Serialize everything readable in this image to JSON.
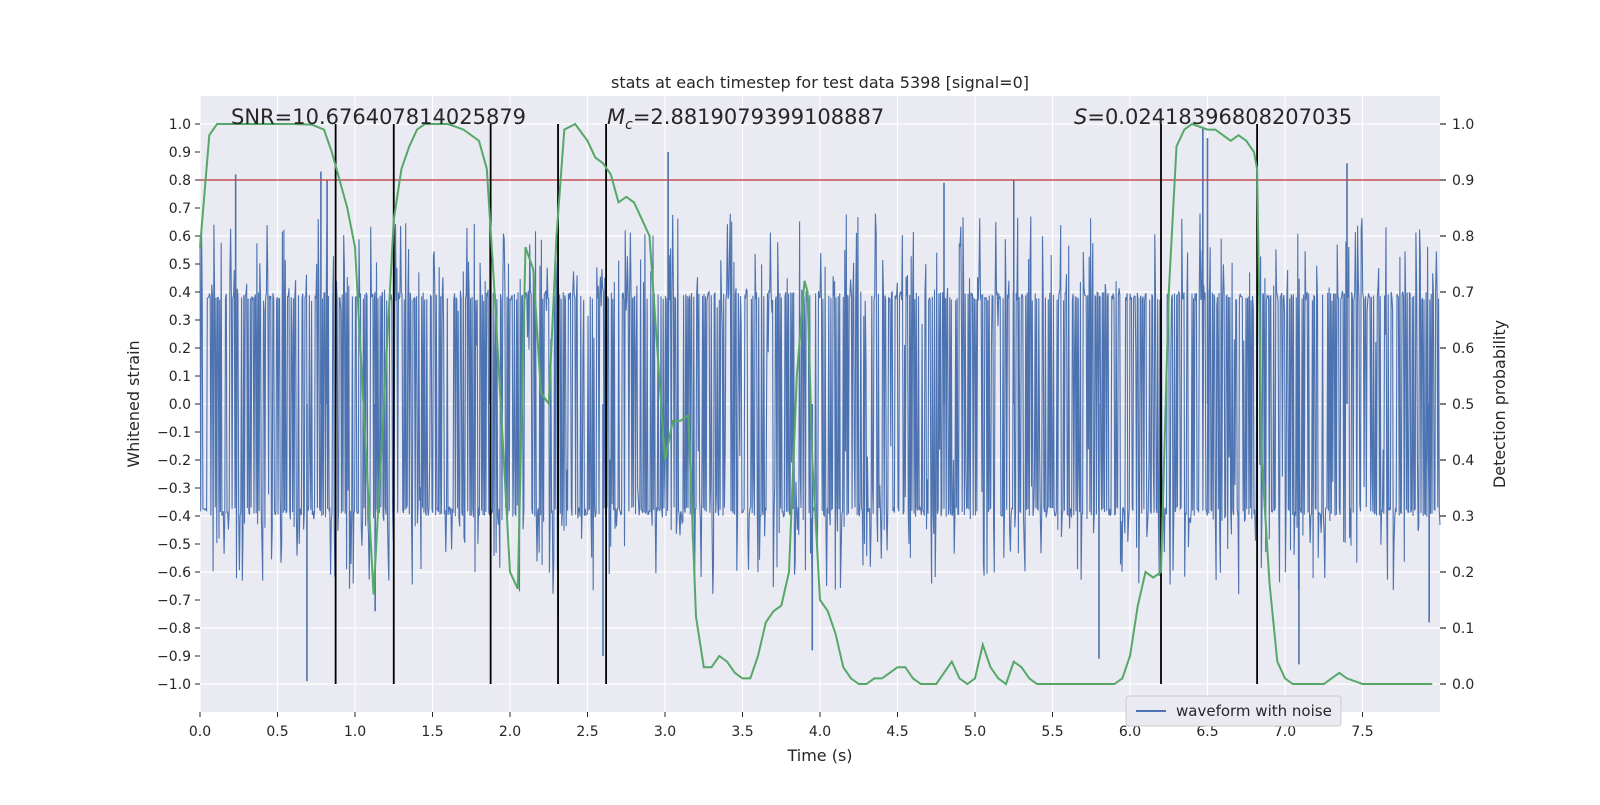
{
  "chart_data": {
    "type": "line",
    "title": "stats at each timestep for test data 5398 [signal=0]",
    "xlabel": "Time (s)",
    "ylabel": "Whitened strain",
    "y2label": "Detection probability",
    "xlim": [
      0.0,
      8.0
    ],
    "ylim": [
      -1.1,
      1.1
    ],
    "y2lim": [
      -0.05,
      1.05
    ],
    "xticks": [
      0.0,
      0.5,
      1.0,
      1.5,
      2.0,
      2.5,
      3.0,
      3.5,
      4.0,
      4.5,
      5.0,
      5.5,
      6.0,
      6.5,
      7.0,
      7.5
    ],
    "xtick_labels": [
      "0.0",
      "0.5",
      "1.0",
      "1.5",
      "2.0",
      "2.5",
      "3.0",
      "3.5",
      "4.0",
      "4.5",
      "5.0",
      "5.5",
      "6.0",
      "6.5",
      "7.0",
      "7.5"
    ],
    "yticks": [
      1.0,
      0.9,
      0.8,
      0.7,
      0.6,
      0.5,
      0.4,
      0.3,
      0.2,
      0.1,
      0.0,
      -0.1,
      -0.2,
      -0.3,
      -0.4,
      -0.5,
      -0.6,
      -0.7,
      -0.8,
      -0.9,
      -1.0
    ],
    "ytick_labels": [
      "1.0",
      "0.9",
      "0.8",
      "0.7",
      "0.6",
      "0.5",
      "0.4",
      "0.3",
      "0.2",
      "0.1",
      "0.0",
      "−0.1",
      "−0.2",
      "−0.3",
      "−0.4",
      "−0.5",
      "−0.6",
      "−0.7",
      "−0.8",
      "−0.9",
      "−1.0"
    ],
    "y2ticks": [
      1.0,
      0.9,
      0.8,
      0.7,
      0.6,
      0.5,
      0.4,
      0.3,
      0.2,
      0.1,
      0.0
    ],
    "y2tick_labels": [
      "1.0",
      "0.9",
      "0.8",
      "0.7",
      "0.6",
      "0.5",
      "0.4",
      "0.3",
      "0.2",
      "0.1",
      "0.0"
    ],
    "annotations": {
      "snr": "SNR=10.676407814025879",
      "mc_symbol": "M",
      "mc_sub": "c",
      "mc_value": "=2.8819079399108887",
      "s_symbol": "S",
      "s_value": "=0.02418396808207035"
    },
    "threshold": {
      "value": 0.8,
      "color": "#c44e52"
    },
    "vertical_lines": [
      0.875,
      1.25,
      1.875,
      2.31,
      2.62,
      6.2,
      6.82
    ],
    "waveform": {
      "name": "waveform with noise",
      "color": "#4c72b0",
      "base_amplitude": 0.4,
      "spikes": [
        {
          "t": 0.23,
          "v": 0.82
        },
        {
          "t": 0.69,
          "v": -0.99
        },
        {
          "t": 0.78,
          "v": 0.83
        },
        {
          "t": 0.82,
          "v": 0.8
        },
        {
          "t": 1.13,
          "v": -0.74
        },
        {
          "t": 1.87,
          "v": 0.73
        },
        {
          "t": 2.31,
          "v": -0.75
        },
        {
          "t": 2.6,
          "v": -0.9
        },
        {
          "t": 3.02,
          "v": 0.9
        },
        {
          "t": 3.95,
          "v": -0.88
        },
        {
          "t": 4.8,
          "v": 0.79
        },
        {
          "t": 5.25,
          "v": 0.8
        },
        {
          "t": 5.8,
          "v": -0.91
        },
        {
          "t": 6.47,
          "v": 0.99
        },
        {
          "t": 6.5,
          "v": 0.95
        },
        {
          "t": 7.09,
          "v": -0.93
        },
        {
          "t": 7.4,
          "v": 0.86
        },
        {
          "t": 7.93,
          "v": -0.78
        }
      ]
    },
    "probability": {
      "name": "Detection probability",
      "color": "#55a868",
      "x": [
        0.0,
        0.06,
        0.11,
        0.3,
        0.6,
        0.72,
        0.8,
        0.85,
        0.95,
        1.0,
        1.12,
        1.25,
        1.3,
        1.35,
        1.4,
        1.45,
        1.5,
        1.55,
        1.6,
        1.7,
        1.8,
        1.85,
        1.9,
        2.0,
        2.05,
        2.1,
        2.15,
        2.2,
        2.25,
        2.3,
        2.35,
        2.42,
        2.5,
        2.55,
        2.6,
        2.65,
        2.7,
        2.75,
        2.8,
        2.85,
        2.9,
        3.0,
        3.05,
        3.1,
        3.15,
        3.2,
        3.25,
        3.3,
        3.35,
        3.4,
        3.45,
        3.5,
        3.55,
        3.6,
        3.65,
        3.7,
        3.75,
        3.8,
        3.85,
        3.9,
        3.92,
        3.95,
        4.0,
        4.05,
        4.1,
        4.15,
        4.2,
        4.25,
        4.3,
        4.35,
        4.4,
        4.45,
        4.5,
        4.55,
        4.6,
        4.65,
        4.7,
        4.75,
        4.8,
        4.85,
        4.9,
        4.95,
        5.0,
        5.05,
        5.1,
        5.15,
        5.2,
        5.25,
        5.3,
        5.35,
        5.4,
        5.5,
        5.6,
        5.7,
        5.8,
        5.85,
        5.9,
        5.95,
        6.0,
        6.05,
        6.1,
        6.15,
        6.2,
        6.25,
        6.3,
        6.35,
        6.4,
        6.5,
        6.55,
        6.6,
        6.65,
        6.7,
        6.75,
        6.8,
        6.82,
        6.85,
        6.9,
        6.95,
        7.0,
        7.05,
        7.1,
        7.15,
        7.2,
        7.25,
        7.3,
        7.35,
        7.4,
        7.5,
        7.6,
        7.7,
        7.8,
        7.9,
        7.95
      ],
      "y": [
        0.78,
        0.98,
        1.0,
        1.0,
        1.0,
        0.999,
        0.99,
        0.95,
        0.85,
        0.78,
        0.16,
        0.83,
        0.92,
        0.96,
        0.99,
        1.0,
        1.0,
        1.0,
        1.0,
        0.99,
        0.97,
        0.92,
        0.7,
        0.2,
        0.17,
        0.78,
        0.74,
        0.52,
        0.5,
        0.8,
        0.99,
        1.0,
        0.97,
        0.94,
        0.93,
        0.91,
        0.86,
        0.87,
        0.86,
        0.83,
        0.8,
        0.4,
        0.47,
        0.47,
        0.48,
        0.12,
        0.03,
        0.03,
        0.05,
        0.04,
        0.02,
        0.01,
        0.01,
        0.05,
        0.11,
        0.13,
        0.14,
        0.2,
        0.55,
        0.72,
        0.7,
        0.4,
        0.15,
        0.13,
        0.09,
        0.03,
        0.01,
        0.0,
        0.0,
        0.01,
        0.01,
        0.02,
        0.03,
        0.03,
        0.01,
        0.0,
        0.0,
        0.0,
        0.02,
        0.04,
        0.01,
        0.0,
        0.01,
        0.07,
        0.03,
        0.01,
        0.0,
        0.04,
        0.03,
        0.01,
        0.0,
        0.0,
        0.0,
        0.0,
        0.0,
        0.0,
        0.0,
        0.01,
        0.05,
        0.14,
        0.2,
        0.19,
        0.2,
        0.7,
        0.96,
        0.99,
        1.0,
        0.99,
        0.99,
        0.98,
        0.97,
        0.98,
        0.97,
        0.95,
        0.92,
        0.4,
        0.18,
        0.04,
        0.01,
        0.0,
        0.0,
        0.0,
        0.0,
        0.0,
        0.01,
        0.02,
        0.01,
        0.0,
        0.0,
        0.0,
        0.0,
        0.0,
        0.0
      ]
    },
    "legend": {
      "placement": "lower-right",
      "entries": [
        "waveform with noise"
      ]
    }
  }
}
